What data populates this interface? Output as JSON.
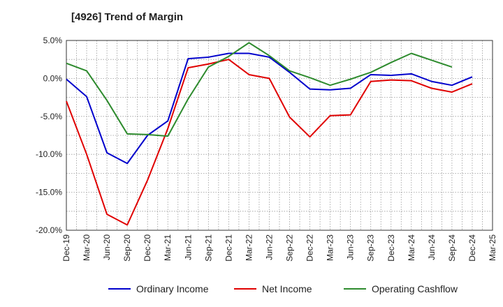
{
  "chart_data": {
    "type": "line",
    "title": "[4926]  Trend of Margin",
    "xlabel": "",
    "ylabel": "",
    "categories": [
      "Dec-19",
      "Mar-20",
      "Jun-20",
      "Sep-20",
      "Dec-20",
      "Mar-21",
      "Jun-21",
      "Sep-21",
      "Dec-21",
      "Mar-22",
      "Jun-22",
      "Sep-22",
      "Dec-22",
      "Mar-23",
      "Jun-23",
      "Sep-23",
      "Dec-23",
      "Mar-24",
      "Jun-24",
      "Sep-24",
      "Dec-24",
      "Mar-25"
    ],
    "ylim": [
      -20,
      5
    ],
    "yticks": [
      5,
      0,
      -5,
      -10,
      -15,
      -20
    ],
    "ytick_labels": [
      "5.0%",
      "0.0%",
      "-5.0%",
      "-10.0%",
      "-15.0%",
      "-20.0%"
    ],
    "grid": true,
    "legend_position": "bottom",
    "series": [
      {
        "name": "Ordinary Income",
        "color": "#0000cc",
        "values": [
          -0.1,
          -2.4,
          -9.8,
          -11.2,
          -7.5,
          -5.6,
          2.6,
          2.8,
          3.3,
          3.3,
          2.8,
          0.8,
          -1.4,
          -1.5,
          -1.3,
          0.5,
          0.4,
          0.6,
          -0.4,
          -0.9,
          0.2,
          null
        ]
      },
      {
        "name": "Net Income",
        "color": "#e00000",
        "values": [
          -3.0,
          -10.0,
          -17.9,
          -19.3,
          -13.4,
          -6.6,
          1.4,
          1.9,
          2.5,
          0.5,
          0.0,
          -5.1,
          -7.7,
          -4.9,
          -4.8,
          -0.4,
          -0.2,
          -0.3,
          -1.3,
          -1.8,
          -0.7,
          null
        ]
      },
      {
        "name": "Operating Cashflow",
        "color": "#2e8b2e",
        "values": [
          2.0,
          1.0,
          -2.9,
          -7.3,
          -7.4,
          -7.6,
          -2.7,
          1.5,
          2.9,
          4.7,
          3.0,
          1.0,
          0.1,
          -0.9,
          -0.1,
          0.8,
          2.1,
          3.3,
          2.4,
          1.5,
          null,
          null
        ]
      }
    ]
  }
}
